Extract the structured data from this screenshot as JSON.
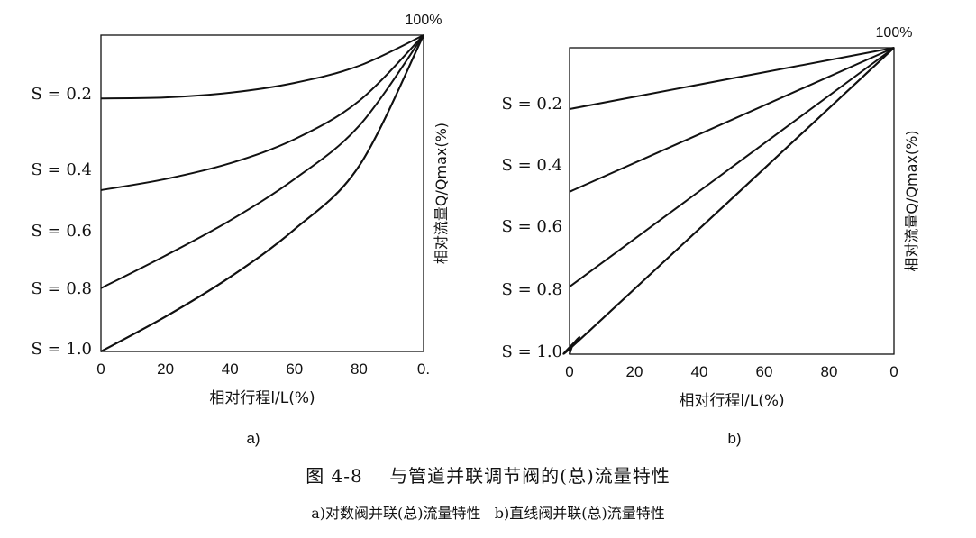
{
  "chart_data": [
    {
      "type": "line",
      "subcaption": "a)",
      "xlabel": "相对行程l/L(%)",
      "ylabel": "相对流量Q/Qmax(%)",
      "corner_label": "100%",
      "x_ticks": [
        "0",
        "20",
        "40",
        "60",
        "80",
        "0."
      ],
      "xlim": [
        0,
        100
      ],
      "ylim": [
        0,
        100
      ],
      "grid": false,
      "series": [
        {
          "name": "S = 0.2",
          "x": [
            0,
            20,
            40,
            60,
            80,
            100
          ],
          "y": [
            80,
            80.3,
            81.8,
            84.9,
            90.3,
            100
          ]
        },
        {
          "name": "S = 0.4",
          "x": [
            0,
            20,
            40,
            60,
            80,
            100
          ],
          "y": [
            51,
            54.5,
            59.5,
            67.1,
            79.2,
            100
          ]
        },
        {
          "name": "S = 0.6",
          "x": [
            0,
            20,
            40,
            60,
            80,
            100
          ],
          "y": [
            20,
            30.3,
            41.4,
            54.5,
            71.3,
            100
          ]
        },
        {
          "name": "S = 0.8",
          "x": [
            0,
            20,
            40,
            60,
            80,
            100
          ],
          "y": [
            0,
            11,
            23.5,
            38.6,
            58.6,
            100
          ]
        },
        {
          "name": "S = 1.0",
          "x": [
            0,
            20,
            40,
            60,
            80,
            100
          ],
          "y": [
            0,
            11,
            23.5,
            38.6,
            58.6,
            100
          ]
        }
      ]
    },
    {
      "type": "line",
      "subcaption": "b)",
      "xlabel": "相对行程l/L(%)",
      "ylabel": "相对流量Q/Qmax(%)",
      "corner_label": "100%",
      "x_ticks": [
        "0",
        "20",
        "40",
        "60",
        "80",
        "0"
      ],
      "xlim": [
        0,
        100
      ],
      "ylim": [
        0,
        100
      ],
      "grid": false,
      "series": [
        {
          "name": "S = 0.2",
          "x": [
            0,
            100
          ],
          "y": [
            80,
            100
          ]
        },
        {
          "name": "S = 0.4",
          "x": [
            0,
            100
          ],
          "y": [
            53,
            100
          ]
        },
        {
          "name": "S = 0.6",
          "x": [
            0,
            100
          ],
          "y": [
            22,
            100
          ]
        },
        {
          "name": "S = 0.8",
          "x": [
            0,
            1,
            3,
            6,
            100
          ],
          "y": [
            0,
            3,
            5.5,
            7.5,
            100
          ]
        },
        {
          "name": "S = 1.0",
          "x": [
            0,
            1,
            3,
            6,
            100
          ],
          "y": [
            0,
            3,
            5.5,
            7.5,
            100
          ]
        }
      ]
    }
  ],
  "caption": {
    "main": "图 4-8    与管道并联调节阀的(总)流量特性",
    "sub": "a)对数阀并联(总)流量特性   b)直线阀并联(总)流量特性"
  }
}
